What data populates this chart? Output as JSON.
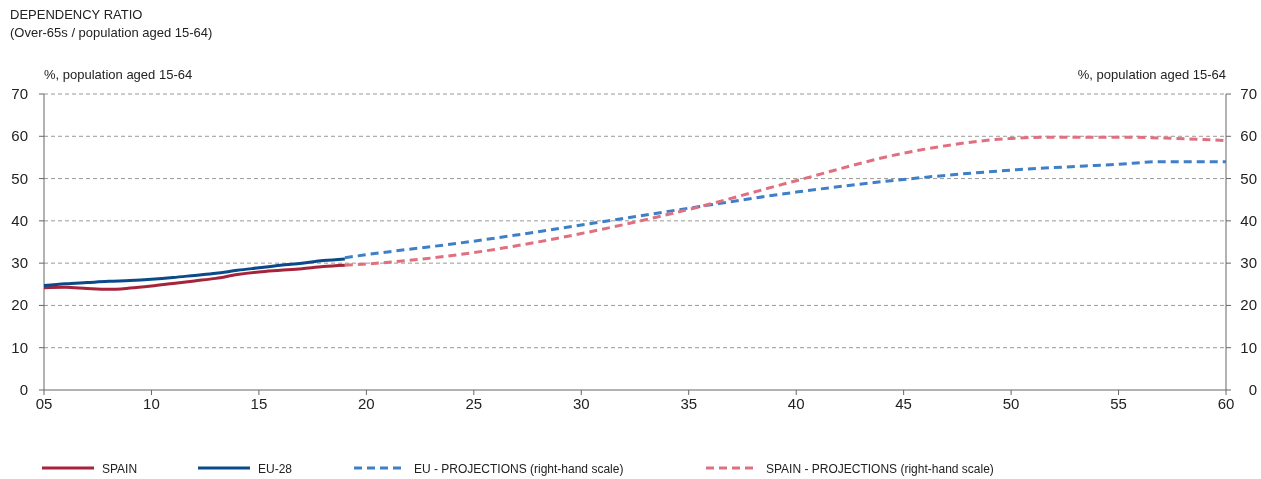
{
  "chart_data": {
    "type": "line",
    "title": "DEPENDENCY RATIO",
    "subtitle": "(Over-65s / population aged 15-64)",
    "ylabel": "%, population aged 15-64",
    "y2label": "%, population aged 15-64",
    "xlim": [
      5,
      60
    ],
    "xticks": [
      {
        "value": 5,
        "label": "05"
      },
      10,
      15,
      20,
      25,
      30,
      35,
      40,
      45,
      50,
      55,
      60
    ],
    "ylim": [
      0,
      70
    ],
    "yticks": [
      0,
      10,
      20,
      30,
      40,
      50,
      60,
      70
    ],
    "y2lim": [
      0,
      70
    ],
    "y2ticks": [
      0,
      10,
      20,
      30,
      40,
      50,
      60,
      70
    ],
    "grid": "y",
    "legend": "bottom",
    "series": [
      {
        "name": "SPAIN",
        "color": "#a6243b",
        "line_style": "solid",
        "x": [
          5,
          6,
          7,
          8,
          9,
          10,
          11,
          12,
          13,
          14,
          15,
          16,
          17,
          18,
          19
        ],
        "values": [
          24.2,
          24.3,
          24.0,
          23.8,
          24.1,
          24.6,
          25.2,
          25.8,
          26.4,
          27.3,
          27.9,
          28.3,
          28.7,
          29.2,
          29.5
        ]
      },
      {
        "name": "EU-28",
        "color": "#0b4a8a",
        "line_style": "solid",
        "x": [
          5,
          6,
          7,
          8,
          9,
          10,
          11,
          12,
          13,
          14,
          15,
          16,
          17,
          18,
          19
        ],
        "values": [
          24.7,
          25.1,
          25.4,
          25.7,
          25.9,
          26.2,
          26.6,
          27.1,
          27.6,
          28.3,
          28.9,
          29.5,
          30.0,
          30.6,
          31.0
        ]
      },
      {
        "name": "EU - PROJECTIONS (right-hand scale)",
        "color": "#3f7fc8",
        "line_style": "dashed",
        "axis": "y2",
        "x": [
          19,
          20,
          25,
          30,
          35,
          40,
          45,
          50,
          55,
          57,
          60
        ],
        "values": [
          31.3,
          32,
          35.2,
          39,
          43,
          46.8,
          49.8,
          52,
          53.4,
          54,
          54
        ]
      },
      {
        "name": "SPAIN - PROJECTIONS (right-hand scale)",
        "color": "#e07080",
        "line_style": "dashed",
        "axis": "y2",
        "x": [
          19,
          20,
          25,
          30,
          35,
          40,
          45,
          50,
          52,
          55,
          57,
          60
        ],
        "values": [
          29.5,
          29.8,
          32.5,
          37,
          42.7,
          49.5,
          56,
          59.5,
          59.8,
          59.8,
          59.6,
          59
        ]
      }
    ]
  }
}
